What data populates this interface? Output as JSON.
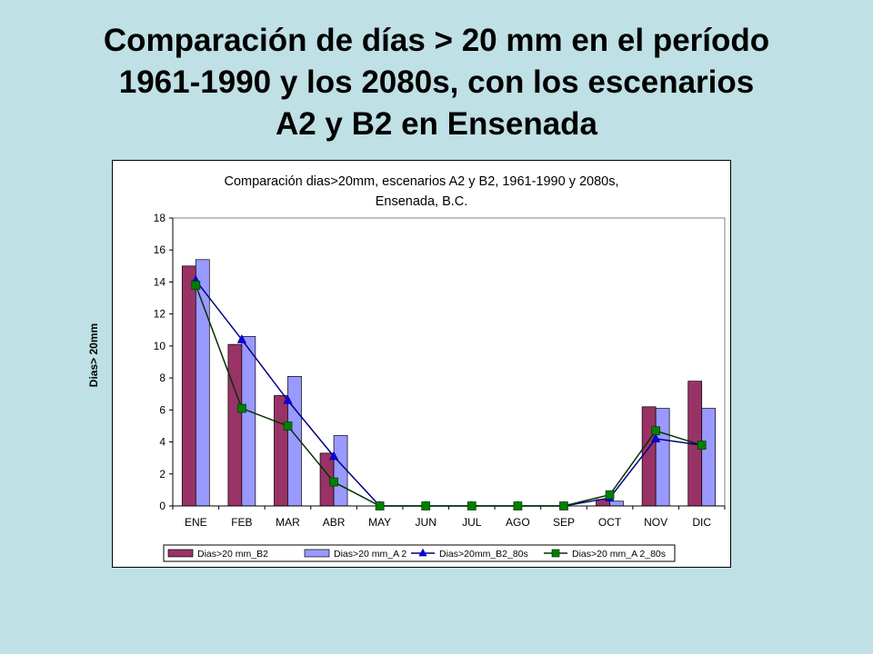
{
  "slide": {
    "title_lines": [
      "Comparación de días > 20 mm en el período",
      "1961-1990 y los 2080s, con los escenarios",
      "A2 y B2 en Ensenada"
    ]
  },
  "colors": {
    "background": "#bfe0e4",
    "bar_b2": "#993366",
    "bar_a2": "#9999ff",
    "line_b2_80s": "#000080",
    "marker_b2_80s": "#0000ff",
    "line_a2_80s": "#003300",
    "marker_a2_80s": "#008000"
  },
  "chart_data": {
    "type": "bar",
    "title_lines": [
      "Comparación dias>20mm, escenarios A2 y B2, 1961-1990 y 2080s,",
      "Ensenada, B.C."
    ],
    "ylabel": "Dias> 20mm",
    "xlabel": "",
    "ylim": [
      0,
      18
    ],
    "yticks": [
      0,
      2,
      4,
      6,
      8,
      10,
      12,
      14,
      16,
      18
    ],
    "grid": false,
    "legend_position": "bottom",
    "categories": [
      "ENE",
      "FEB",
      "MAR",
      "ABR",
      "MAY",
      "JUN",
      "JUL",
      "AGO",
      "SEP",
      "OCT",
      "NOV",
      "DIC"
    ],
    "series": [
      {
        "name": "Dias>20 mm_B2",
        "kind": "bar",
        "values": [
          15.0,
          10.1,
          6.9,
          3.3,
          0,
          0,
          0,
          0,
          0,
          0.4,
          6.2,
          7.8
        ]
      },
      {
        "name": "Dias>20 mm_A 2",
        "kind": "bar",
        "values": [
          15.4,
          10.6,
          8.1,
          4.4,
          0,
          0,
          0,
          0,
          0,
          0.3,
          6.1,
          6.1
        ]
      },
      {
        "name": "Dias>20mm_B2_80s",
        "kind": "line",
        "marker": "triangle",
        "values": [
          14.1,
          10.4,
          6.6,
          3.1,
          0,
          0,
          0,
          0,
          0,
          0.5,
          4.2,
          3.8
        ]
      },
      {
        "name": "Dias>20 mm_A 2_80s",
        "kind": "line",
        "marker": "square",
        "values": [
          13.8,
          6.1,
          5.0,
          1.5,
          0,
          0,
          0,
          0,
          0,
          0.7,
          4.7,
          3.8
        ]
      }
    ]
  }
}
